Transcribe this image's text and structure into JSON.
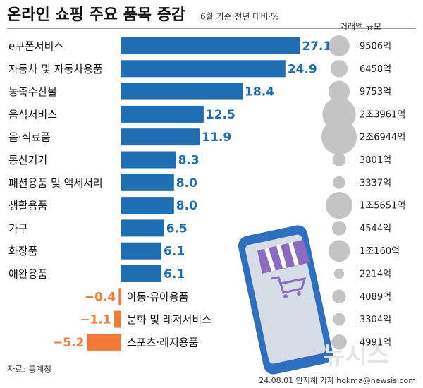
{
  "chart_data": {
    "type": "bar",
    "orientation": "horizontal",
    "title": "온라인 쇼핑 주요 품목 증감",
    "subtitle": "6월 기준 전년 대비·%",
    "size_title": "거래액 규모",
    "categories": [
      "e쿠폰서비스",
      "자동차 및 자동차용품",
      "농축수산물",
      "음식서비스",
      "음·식료품",
      "통신기기",
      "패션용품 및 액세서리",
      "생활용품",
      "가구",
      "화장품",
      "애완용품",
      "아동·유아용품",
      "문화 및 레저서비스",
      "스포츠·레저용품"
    ],
    "values": [
      27.1,
      24.9,
      18.4,
      12.5,
      11.9,
      8.3,
      8,
      8,
      6.5,
      6.1,
      6.1,
      -0.4,
      -1.1,
      -5.2
    ],
    "value_labels": [
      "27.1",
      "24.9",
      "18.4",
      "12.5",
      "11.9",
      "8.3",
      "8.0",
      "8.0",
      "6.5",
      "6.1",
      "6.1",
      "−0.4",
      "−1.1",
      "−5.2"
    ],
    "color": "#1f6db3",
    "negative_color": "#f07a3a",
    "sizes": [
      9506,
      6458,
      9753,
      23961,
      26944,
      3801,
      3337,
      15651,
      4544,
      10160,
      2214,
      4089,
      3304,
      4991
    ],
    "size_labels": [
      "9506억",
      "6458억",
      "9753억",
      "2조3961억",
      "2조6944억",
      "3801억",
      "3337억",
      "1조5651억",
      "4544억",
      "1조160억",
      "2214억",
      "4089억",
      "3304억",
      "4991억"
    ],
    "size_color": "#c4c4c4",
    "source": "자료: 통계청",
    "credit": "24.08.01 안지혜 기자 hokma@newsis.com",
    "watermark": "뉴시스"
  }
}
